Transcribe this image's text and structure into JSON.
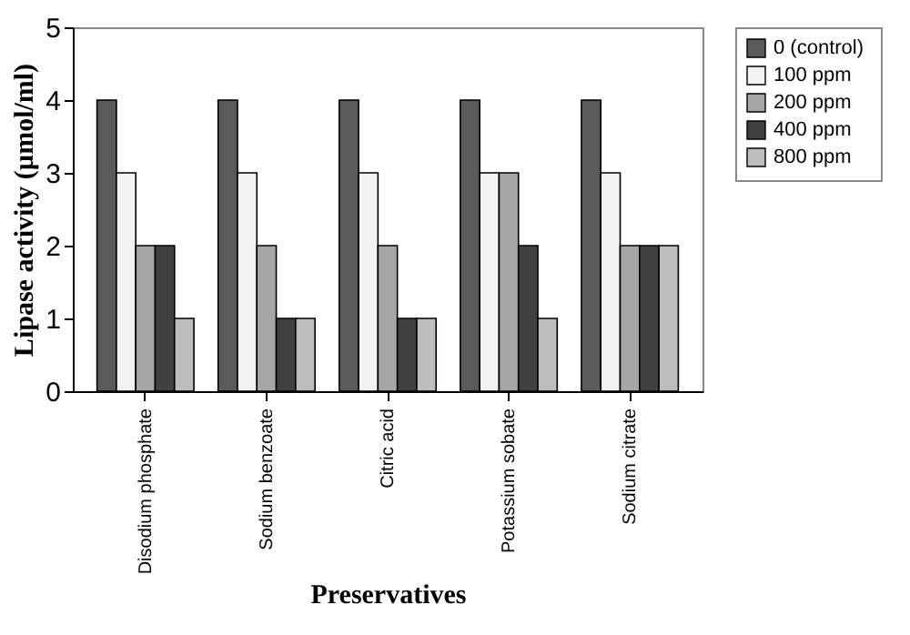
{
  "chart_data": {
    "type": "bar",
    "xlabel": "Preservatives",
    "ylabel": "Lipase activity (µmol/ml)",
    "categories": [
      "Disodium phosphate",
      "Sodium benzoate",
      "Citric acid",
      "Potassium sobate",
      "Sodium citrate"
    ],
    "series": [
      {
        "name": "0  (control)",
        "color": "#5a5a5a",
        "values": [
          4,
          4,
          4,
          4,
          4
        ]
      },
      {
        "name": "100  ppm",
        "color": "#f2f2f2",
        "values": [
          3,
          3,
          3,
          3,
          3
        ]
      },
      {
        "name": "200  ppm",
        "color": "#a6a6a6",
        "values": [
          2,
          2,
          2,
          3,
          2
        ]
      },
      {
        "name": "400  ppm",
        "color": "#404040",
        "values": [
          2,
          1,
          1,
          2,
          2
        ]
      },
      {
        "name": "800  ppm",
        "color": "#bdbdbd",
        "values": [
          1,
          1,
          1,
          1,
          2
        ]
      }
    ],
    "ylim": [
      0,
      5
    ],
    "yticks": [
      0,
      1,
      2,
      3,
      4,
      5
    ],
    "grid": false,
    "legend": "top right"
  }
}
